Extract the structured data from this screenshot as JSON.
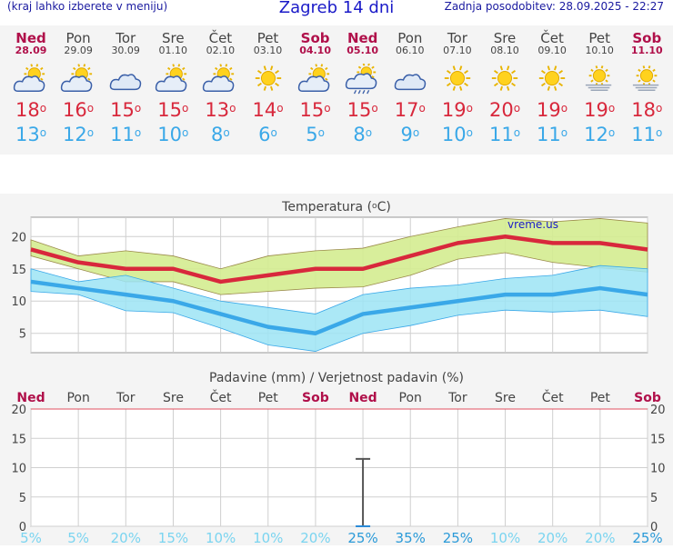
{
  "header": {
    "left_note": "(kraj lahko izberete v meniju)",
    "title": "Zagreb 14 dni",
    "last_update": "Zadnja posodobitev: 28.09.2025 - 22:27"
  },
  "days": [
    {
      "name": "Ned",
      "date": "28.09",
      "icon": "sun-cloud-icon",
      "max": "18",
      "min": "13",
      "weekend": true
    },
    {
      "name": "Pon",
      "date": "29.09",
      "icon": "sun-cloud-icon",
      "max": "16",
      "min": "12",
      "weekend": false
    },
    {
      "name": "Tor",
      "date": "30.09",
      "icon": "cloud-icon",
      "max": "15",
      "min": "11",
      "weekend": false
    },
    {
      "name": "Sre",
      "date": "01.10",
      "icon": "sun-cloud-icon",
      "max": "15",
      "min": "10",
      "weekend": false
    },
    {
      "name": "Čet",
      "date": "02.10",
      "icon": "sun-cloud-icon",
      "max": "13",
      "min": "8",
      "weekend": false
    },
    {
      "name": "Pet",
      "date": "03.10",
      "icon": "sun-icon",
      "max": "14",
      "min": "6",
      "weekend": false
    },
    {
      "name": "Sob",
      "date": "04.10",
      "icon": "sun-cloud-icon",
      "max": "15",
      "min": "5",
      "weekend": true
    },
    {
      "name": "Ned",
      "date": "05.10",
      "icon": "sun-cloud-rain-icon",
      "max": "15",
      "min": "8",
      "weekend": true
    },
    {
      "name": "Pon",
      "date": "06.10",
      "icon": "cloud-icon",
      "max": "17",
      "min": "9",
      "weekend": false
    },
    {
      "name": "Tor",
      "date": "07.10",
      "icon": "sun-icon",
      "max": "19",
      "min": "10",
      "weekend": false
    },
    {
      "name": "Sre",
      "date": "08.10",
      "icon": "sun-icon",
      "max": "20",
      "min": "11",
      "weekend": false
    },
    {
      "name": "Čet",
      "date": "09.10",
      "icon": "sun-icon",
      "max": "19",
      "min": "11",
      "weekend": false
    },
    {
      "name": "Pet",
      "date": "10.10",
      "icon": "sun-haze-icon",
      "max": "19",
      "min": "12",
      "weekend": false
    },
    {
      "name": "Sob",
      "date": "11.10",
      "icon": "sun-haze-icon",
      "max": "18",
      "min": "11",
      "weekend": true
    }
  ],
  "degree_symbol": "o",
  "colors": {
    "max_temp": "#d8283c",
    "min_temp": "#3aa8e8",
    "weekend": "#b0104a",
    "max_band": "#d4ec90",
    "min_band": "#9ce4f4",
    "precip_prob": "#7ad4f0"
  },
  "chart_data": [
    {
      "type": "line",
      "title": "Temperatura (oC)",
      "title_unit": "o",
      "title_text_before": "Temperatura (",
      "title_text_after": "C)",
      "watermark": "vreme.us",
      "categories": [
        "28.09",
        "29.09",
        "30.09",
        "01.10",
        "02.10",
        "03.10",
        "04.10",
        "05.10",
        "06.10",
        "07.10",
        "08.10",
        "09.10",
        "10.10",
        "11.10"
      ],
      "ylim": [
        2,
        23
      ],
      "yticks": [
        5,
        10,
        15,
        20
      ],
      "grid": true,
      "series": [
        {
          "values": [
            18,
            16,
            15,
            15,
            13,
            14,
            15,
            15,
            17,
            19,
            20,
            19,
            19,
            18
          ],
          "upper": [
            19.5,
            17,
            17.8,
            17,
            15,
            17,
            17.8,
            18.2,
            20,
            21.5,
            22.8,
            22.3,
            22.8,
            22.1
          ],
          "lower": [
            17,
            15,
            13,
            13,
            11,
            11.5,
            12,
            12.2,
            14,
            16.5,
            17.5,
            16,
            15.2,
            14.5
          ]
        },
        {
          "values": [
            13,
            12,
            11,
            10,
            8,
            6,
            5,
            8,
            9,
            10,
            11,
            11,
            12,
            11
          ],
          "upper": [
            15,
            13,
            14,
            12,
            10,
            9,
            8,
            11,
            12,
            12.5,
            13.5,
            14,
            15.5,
            15
          ],
          "lower": [
            11.5,
            11,
            8.5,
            8.2,
            5.8,
            3.2,
            2.2,
            5,
            6.2,
            7.8,
            8.6,
            8.3,
            8.6,
            7.6
          ]
        }
      ]
    },
    {
      "type": "bar",
      "title": "Padavine (mm) / Verjetnost padavin (%)",
      "categories": [
        "Ned",
        "Pon",
        "Tor",
        "Sre",
        "Čet",
        "Pet",
        "Sob",
        "Ned",
        "Pon",
        "Tor",
        "Sre",
        "Čet",
        "Pet",
        "Sob"
      ],
      "weekend": [
        true,
        false,
        false,
        false,
        false,
        false,
        true,
        true,
        false,
        false,
        false,
        false,
        false,
        true
      ],
      "ylim": [
        0,
        20
      ],
      "yticks": [
        0,
        5,
        10,
        15,
        20
      ],
      "precip_mm": [
        0,
        0,
        0,
        0,
        0,
        0,
        0,
        0,
        0,
        0,
        0,
        0,
        0,
        0
      ],
      "precip_range_mm": [
        null,
        null,
        null,
        null,
        null,
        null,
        null,
        [
          0,
          11.5
        ],
        null,
        null,
        null,
        null,
        null,
        null
      ],
      "probability_pct": [
        "5%",
        "5%",
        "20%",
        "15%",
        "10%",
        "10%",
        "20%",
        "25%",
        "35%",
        "25%",
        "10%",
        "20%",
        "20%",
        "25%"
      ],
      "probability_emphasis": [
        false,
        false,
        false,
        false,
        false,
        false,
        false,
        true,
        true,
        true,
        false,
        false,
        false,
        true
      ]
    }
  ]
}
